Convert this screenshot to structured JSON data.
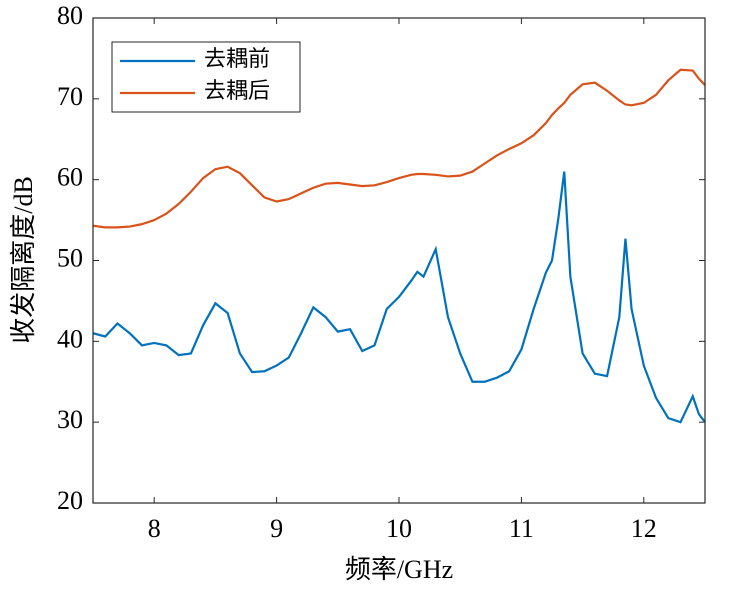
{
  "chart_data": {
    "type": "line",
    "x_label": "频率/GHz",
    "y_label": "收发隔离度/dB",
    "x": [
      7.5,
      7.6,
      7.7,
      7.8,
      7.9,
      8.0,
      8.1,
      8.2,
      8.3,
      8.4,
      8.5,
      8.6,
      8.7,
      8.8,
      8.9,
      9.0,
      9.1,
      9.2,
      9.3,
      9.4,
      9.5,
      9.6,
      9.7,
      9.8,
      9.9,
      10.0,
      10.1,
      10.15,
      10.2,
      10.3,
      10.4,
      10.5,
      10.6,
      10.7,
      10.8,
      10.9,
      11.0,
      11.1,
      11.2,
      11.25,
      11.3,
      11.35,
      11.4,
      11.5,
      11.6,
      11.7,
      11.8,
      11.85,
      11.9,
      12.0,
      12.1,
      12.2,
      12.3,
      12.4,
      12.45,
      12.5
    ],
    "series": [
      {
        "name": "去耦前",
        "color": "#0072bd",
        "values": [
          41,
          40.6,
          42.2,
          41,
          39.5,
          39.8,
          39.5,
          38.3,
          38.5,
          42,
          44.7,
          43.5,
          38.5,
          36.2,
          36.3,
          37,
          38,
          41,
          44.2,
          43,
          41.2,
          41.5,
          38.8,
          39.5,
          44,
          45.5,
          47.5,
          48.6,
          48,
          51.4,
          43,
          38.5,
          35,
          35,
          35.5,
          36.3,
          39,
          44,
          48.5,
          50,
          55,
          61,
          48,
          38.5,
          36,
          35.7,
          43,
          52.7,
          44,
          37,
          33,
          30.5,
          30,
          33.2,
          31,
          30
        ]
      },
      {
        "name": "去耦后",
        "color": "#d95319",
        "values": [
          54.3,
          54.1,
          54.1,
          54.2,
          54.5,
          55,
          55.8,
          57,
          58.5,
          60.2,
          61.3,
          61.6,
          60.8,
          59.3,
          57.8,
          57.3,
          57.6,
          58.3,
          59,
          59.5,
          59.6,
          59.4,
          59.2,
          59.3,
          59.7,
          60.2,
          60.6,
          60.7,
          60.7,
          60.6,
          60.4,
          60.5,
          61,
          62,
          63,
          63.8,
          64.5,
          65.5,
          67,
          68,
          68.8,
          69.5,
          70.5,
          71.8,
          72,
          71,
          69.8,
          69.3,
          69.2,
          69.5,
          70.5,
          72.3,
          73.6,
          73.5,
          72.5,
          71.7
        ]
      }
    ],
    "xlim": [
      7.5,
      12.5
    ],
    "xticks": [
      8,
      9,
      10,
      11,
      12
    ],
    "ylim": [
      20,
      80
    ],
    "yticks": [
      20,
      30,
      40,
      50,
      60,
      70,
      80
    ],
    "legend": "upper-left"
  }
}
